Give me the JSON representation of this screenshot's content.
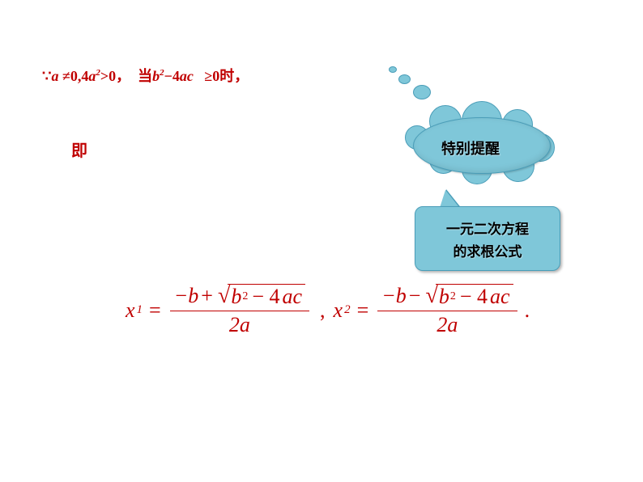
{
  "condition": {
    "prefix": "∵",
    "a": "a",
    "neq": "≠0,4",
    "a2": "a",
    "sup1": "2",
    "gt0": ">0，",
    "dang": "当",
    "b": "b",
    "sup2": "2",
    "minus4ac": "−4",
    "ac": "ac",
    "geq": "≥0时，",
    "color": "#c00000",
    "fontsize": 18
  },
  "ji": {
    "text": "即",
    "color": "#c00000",
    "fontsize": 20
  },
  "cloud": {
    "text": "特别提醒",
    "bg_color": "#7fc7d9",
    "border_color": "#4a9db8",
    "text_color": "#000000",
    "fontsize": 18
  },
  "callout": {
    "line1": "一元二次方程",
    "line2": "的求根公式",
    "bg_color": "#7fc7d9",
    "border_color": "#4a9db8",
    "text_color": "#000000",
    "fontsize": 17
  },
  "formula": {
    "x": "x",
    "sub1": "1",
    "sub2": "2",
    "eq": "=",
    "neg_b": "−b",
    "plus": "+",
    "minus": "−",
    "b": "b",
    "sup2": "2",
    "minus4ac": "− 4",
    "a": "a",
    "c": "c",
    "den2a": "2a",
    "comma": ",",
    "period": ".",
    "color": "#c00000",
    "fontsize": 26
  }
}
